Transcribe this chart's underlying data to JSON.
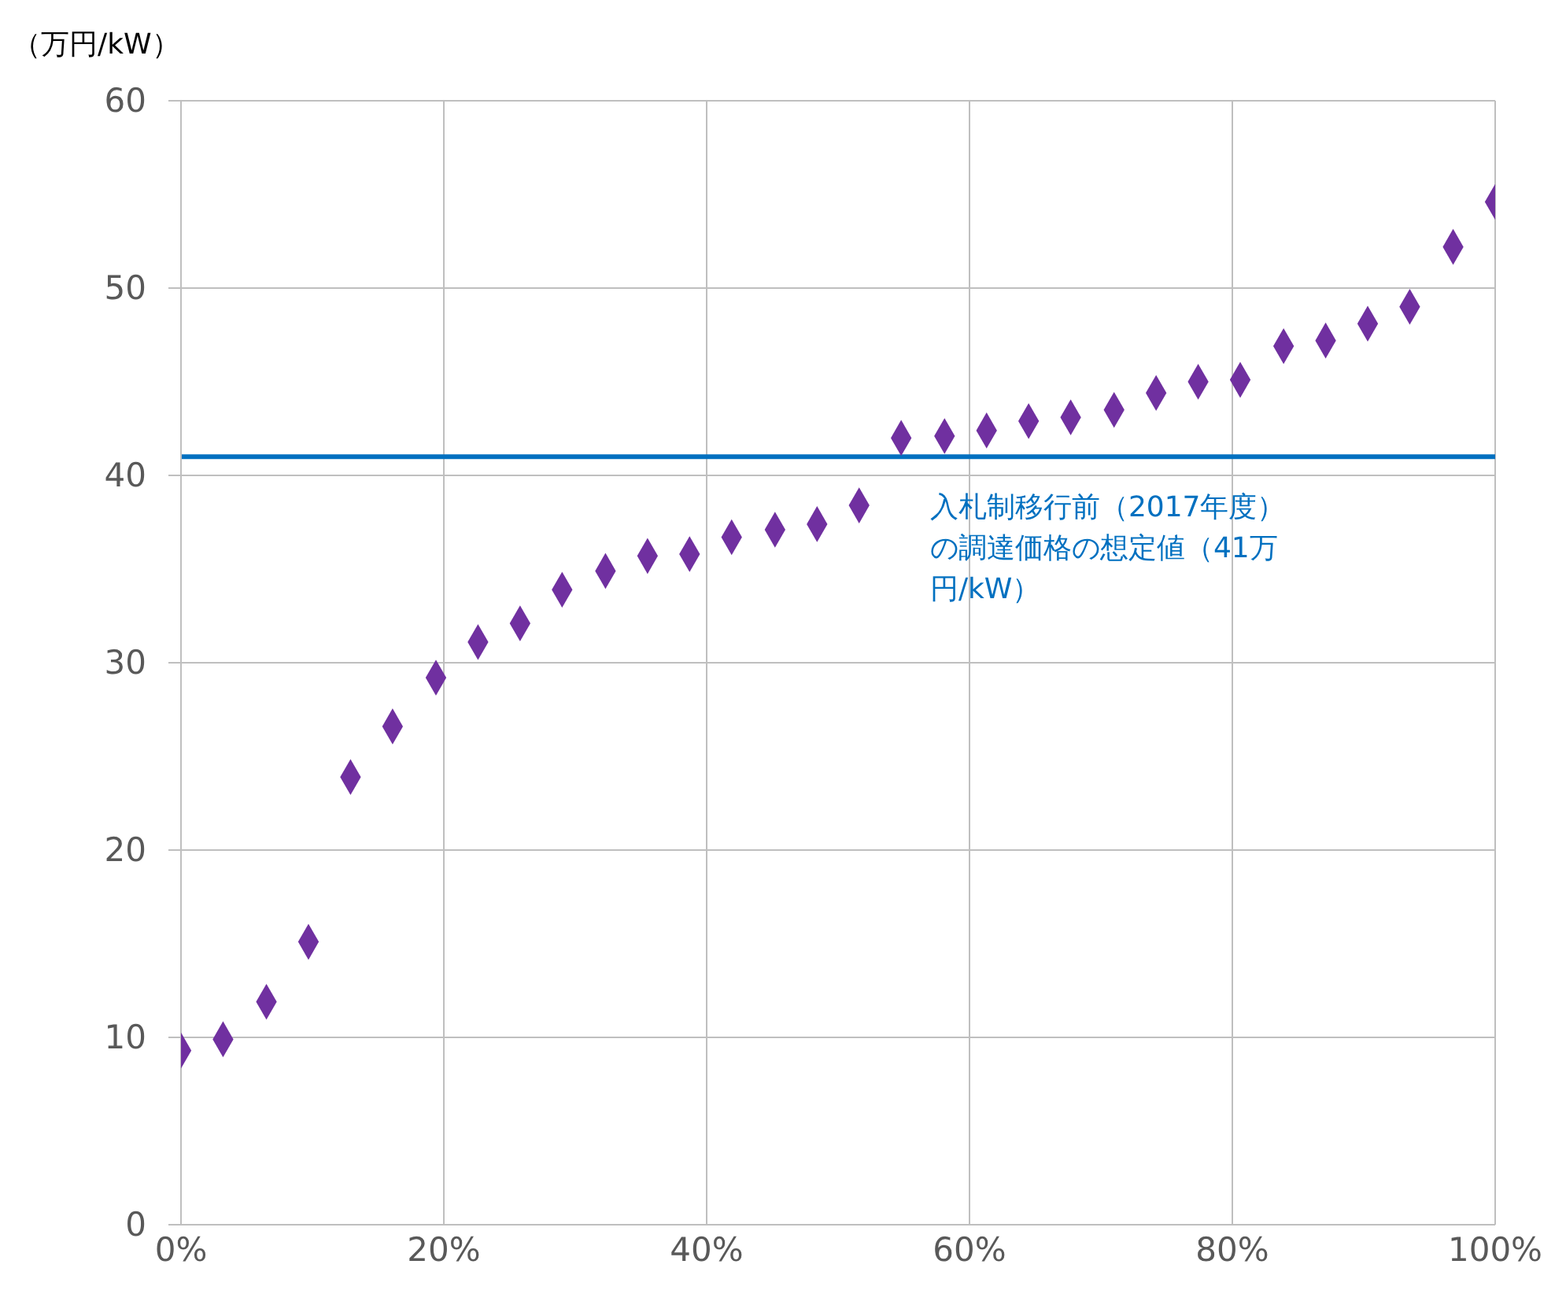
{
  "chart_data": {
    "type": "scatter",
    "ylabel": "（万円/kW）",
    "x": [
      0,
      3.2,
      6.5,
      9.7,
      12.9,
      16.1,
      19.4,
      22.6,
      25.8,
      29.0,
      32.3,
      35.5,
      38.7,
      41.9,
      45.2,
      48.4,
      51.6,
      54.8,
      58.1,
      61.3,
      64.5,
      67.7,
      71.0,
      74.2,
      77.4,
      80.6,
      83.9,
      87.1,
      90.3,
      93.5,
      96.8,
      100
    ],
    "series": [
      {
        "color": "#7030a0",
        "values": [
          9.3,
          9.9,
          11.9,
          15.1,
          23.9,
          26.6,
          29.2,
          31.1,
          32.1,
          33.9,
          34.9,
          35.7,
          35.8,
          36.7,
          37.1,
          37.4,
          38.4,
          42.0,
          42.1,
          42.4,
          42.9,
          43.1,
          43.5,
          44.4,
          45.0,
          45.1,
          46.9,
          47.2,
          48.1,
          49.0,
          52.2,
          54.6
        ]
      }
    ],
    "marker": "diamond",
    "xlim": [
      0,
      100
    ],
    "xticks": [
      {
        "value": 0,
        "label": "0%"
      },
      {
        "value": 20,
        "label": "20%"
      },
      {
        "value": 40,
        "label": "40%"
      },
      {
        "value": 60,
        "label": "60%"
      },
      {
        "value": 80,
        "label": "80%"
      },
      {
        "value": 100,
        "label": "100%"
      }
    ],
    "ylim": [
      0,
      60
    ],
    "yticks": [
      0,
      10,
      20,
      30,
      40,
      50,
      60
    ],
    "grid": true,
    "ref_lines": [
      {
        "axis": "y",
        "value": 41,
        "label": "入札制移行前（2017年度）の調達価格の想定値（41万円/kW）",
        "color": "#0070c0"
      }
    ]
  }
}
